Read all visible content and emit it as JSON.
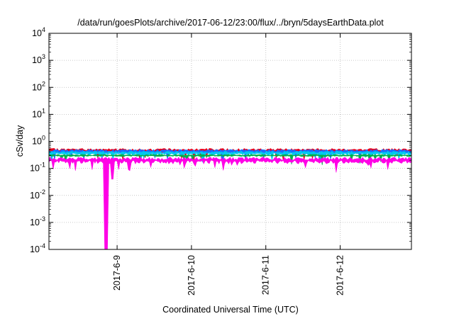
{
  "chart_data": {
    "type": "area",
    "title": "/data/run/goesPlots/archive/2017-06-12/23:00/flux/../bryn/5daysEarthData.plot",
    "xlabel": "Coordinated Universal Time (UTC)",
    "ylabel": "cSv/day",
    "yscale": "log",
    "ylim": [
      0.0001,
      10000
    ],
    "xlim": [
      "2017-06-08T02:00",
      "2017-06-12T23:00"
    ],
    "grid": true,
    "y_ticks": [
      {
        "value": 0.0001,
        "base": "10",
        "exp": "-4"
      },
      {
        "value": 0.001,
        "base": "10",
        "exp": "-3"
      },
      {
        "value": 0.01,
        "base": "10",
        "exp": "-2"
      },
      {
        "value": 0.1,
        "base": "10",
        "exp": "-1"
      },
      {
        "value": 1,
        "base": "10",
        "exp": "0"
      },
      {
        "value": 10,
        "base": "10",
        "exp": "1"
      },
      {
        "value": 100,
        "base": "10",
        "exp": "2"
      },
      {
        "value": 1000,
        "base": "10",
        "exp": "3"
      },
      {
        "value": 10000,
        "base": "10",
        "exp": "4"
      }
    ],
    "x_ticks": [
      {
        "value": "2017-06-09T00:00",
        "label": "2017-6-9"
      },
      {
        "value": "2017-06-10T00:00",
        "label": "2017-6-10"
      },
      {
        "value": "2017-06-11T00:00",
        "label": "2017-6-11"
      },
      {
        "value": "2017-06-12T00:00",
        "label": "2017-6-12"
      }
    ],
    "series": [
      {
        "color": "#e8001c",
        "baseline": 0.45,
        "noise": 0.22
      },
      {
        "color": "#1c6cff",
        "baseline": 0.42,
        "noise": 0.2
      },
      {
        "color": "#00c8f0",
        "baseline": 0.37,
        "noise": 0.18
      },
      {
        "color": "#00b04a",
        "baseline": 0.3,
        "noise": 0.1
      },
      {
        "color": "#ff00e6",
        "baseline": 0.2,
        "noise": 0.3,
        "dips": [
          {
            "x": "2017-06-08T20:00",
            "y": 0.0001
          },
          {
            "x": "2017-06-08T20:30",
            "y": 0.0001
          },
          {
            "x": "2017-06-08T22:30",
            "y": 0.04
          }
        ]
      }
    ]
  }
}
